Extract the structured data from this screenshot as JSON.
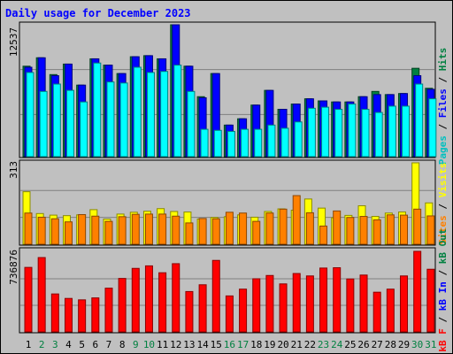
{
  "chart_data": [
    {
      "type": "bar",
      "panel": "top",
      "title": "Daily usage for December 2023",
      "y_max_label": "12537",
      "grid": true,
      "categories": [
        "1",
        "2",
        "3",
        "4",
        "5",
        "6",
        "7",
        "8",
        "9",
        "10",
        "11",
        "12",
        "13",
        "14",
        "15",
        "16",
        "17",
        "18",
        "19",
        "20",
        "21",
        "22",
        "23",
        "24",
        "25",
        "26",
        "27",
        "28",
        "29",
        "30",
        "31"
      ],
      "highlight_days": [
        "2",
        "3",
        "9",
        "10",
        "16",
        "17",
        "23",
        "24",
        "30",
        "31"
      ],
      "ylim": [
        0,
        12537
      ],
      "series": [
        {
          "name": "Hits",
          "color": "#008040",
          "values": [
            8600,
            9400,
            7800,
            8800,
            6800,
            9300,
            8700,
            7900,
            9500,
            9600,
            9300,
            12537,
            8600,
            5700,
            7900,
            3000,
            3600,
            4900,
            6300,
            4500,
            5000,
            5500,
            5300,
            5200,
            5200,
            5700,
            6200,
            5900,
            6000,
            8400,
            6500
          ]
        },
        {
          "name": "Files",
          "color": "#0000ff",
          "values": [
            8500,
            9400,
            7700,
            8800,
            6800,
            9300,
            8700,
            7900,
            9500,
            9600,
            9300,
            12537,
            8600,
            5600,
            7900,
            3000,
            3600,
            4900,
            6300,
            4500,
            5000,
            5500,
            5300,
            5200,
            5200,
            5700,
            5900,
            5900,
            6000,
            7700,
            6400
          ]
        },
        {
          "name": "Pages",
          "color": "#00ffff",
          "values": [
            8000,
            6200,
            6900,
            6300,
            5200,
            8900,
            7100,
            7000,
            8500,
            8000,
            8100,
            8700,
            6200,
            2600,
            2500,
            2400,
            2600,
            2600,
            3000,
            2700,
            3300,
            4600,
            4700,
            4500,
            5000,
            4500,
            4200,
            4800,
            4800,
            6900,
            5500
          ]
        }
      ]
    },
    {
      "type": "bar",
      "panel": "middle",
      "y_max_label": "313",
      "grid": true,
      "categories": [
        "1",
        "2",
        "3",
        "4",
        "5",
        "6",
        "7",
        "8",
        "9",
        "10",
        "11",
        "12",
        "13",
        "14",
        "15",
        "16",
        "17",
        "18",
        "19",
        "20",
        "21",
        "22",
        "23",
        "24",
        "25",
        "26",
        "27",
        "28",
        "29",
        "30",
        "31"
      ],
      "ylim": [
        0,
        313
      ],
      "series": [
        {
          "name": "Visits",
          "color": "#ffff00",
          "values": [
            202,
            118,
            112,
            110,
            113,
            133,
            97,
            116,
            123,
            127,
            137,
            126,
            124,
            97,
            103,
            106,
            113,
            104,
            126,
            136,
            131,
            174,
            139,
            102,
            111,
            148,
            107,
            120,
            124,
            313,
            159
          ]
        },
        {
          "name": "Sites",
          "color": "#ff8000",
          "values": [
            120,
            104,
            98,
            86,
            114,
            108,
            88,
            106,
            115,
            116,
            116,
            108,
            82,
            99,
            98,
            123,
            120,
            88,
            120,
            135,
            187,
            121,
            70,
            128,
            103,
            107,
            94,
            113,
            112,
            135,
            109
          ]
        }
      ]
    },
    {
      "type": "bar",
      "panel": "bottom",
      "y_max_label": "736876",
      "grid": true,
      "categories": [
        "1",
        "2",
        "3",
        "4",
        "5",
        "6",
        "7",
        "8",
        "9",
        "10",
        "11",
        "12",
        "13",
        "14",
        "15",
        "16",
        "17",
        "18",
        "19",
        "20",
        "21",
        "22",
        "23",
        "24",
        "25",
        "26",
        "27",
        "28",
        "29",
        "30",
        "31"
      ],
      "ylim": [
        0,
        736876
      ],
      "series": [
        {
          "name": "KB In",
          "color": "#008040",
          "values": [
            0,
            0,
            0,
            0,
            0,
            0,
            0,
            0,
            0,
            0,
            0,
            0,
            0,
            0,
            0,
            0,
            0,
            0,
            0,
            0,
            0,
            0,
            0,
            0,
            0,
            0,
            0,
            0,
            0,
            0,
            0
          ]
        },
        {
          "name": "KB Out",
          "color": "#00a0a0",
          "values": [
            0,
            0,
            0,
            0,
            0,
            0,
            0,
            0,
            0,
            0,
            0,
            0,
            0,
            0,
            0,
            0,
            0,
            0,
            0,
            0,
            0,
            0,
            0,
            0,
            0,
            0,
            0,
            0,
            0,
            0,
            0
          ]
        },
        {
          "name": "KB F",
          "color": "#ff0000",
          "values": [
            590000,
            680000,
            347000,
            306000,
            293000,
            311000,
            400000,
            489000,
            581000,
            604000,
            541000,
            624000,
            369000,
            431000,
            654000,
            329000,
            391000,
            486000,
            516000,
            439000,
            534000,
            512000,
            584000,
            587000,
            484000,
            520000,
            363000,
            391000,
            512000,
            736876,
            573000
          ]
        }
      ]
    }
  ],
  "legend": {
    "top": {
      "pages": "Pages",
      "files": "Files",
      "hits": "Hits",
      "sep": "/"
    },
    "middle": {
      "sites": "Sites",
      "visits": "Visits",
      "sep": "/"
    },
    "bottom": {
      "kbf": "kB F",
      "kbin": "kB In",
      "kbout": "kB Out",
      "sep": "/"
    }
  },
  "colors": {
    "background": "#c0c0c0",
    "plot_bg": "#c0c0c0",
    "title": "#0000ff",
    "axis_text": "#000000",
    "day_normal": "#000000",
    "day_highlight": "#008040"
  }
}
